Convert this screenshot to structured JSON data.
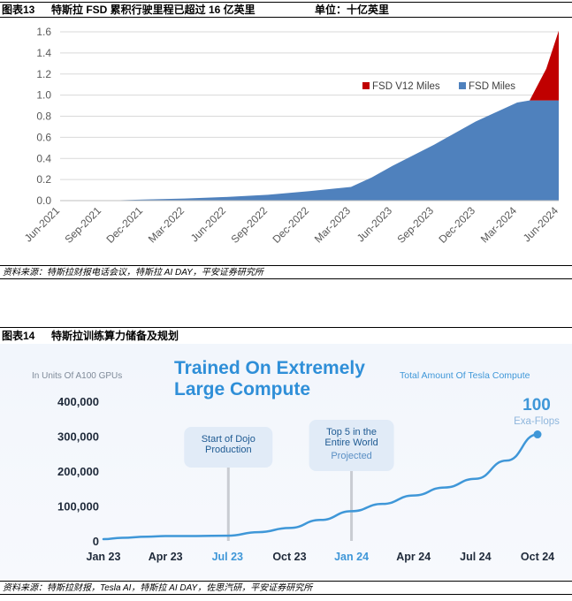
{
  "figure13": {
    "label": "图表13",
    "title": "特斯拉 FSD 累积行驶里程已超过 16 亿英里",
    "unit": "单位：十亿英里",
    "source": "资料来源：特斯拉财报电话会议，特斯拉 AI DAY，平安证券研究所"
  },
  "figure14": {
    "label": "图表14",
    "title": "特斯拉训练算力储备及规划",
    "source": "资料来源：特斯拉财报，Tesla AI，特斯拉 AI DAY，佐思汽研，平安证券研究所"
  },
  "chart_data": [
    {
      "type": "area",
      "stacked": true,
      "categories": [
        "Jun-2021",
        "Sep-2021",
        "Dec-2021",
        "Mar-2022",
        "Jun-2022",
        "Sep-2022",
        "Dec-2022",
        "Mar-2023",
        "Jun-2023",
        "Sep-2023",
        "Dec-2023",
        "Mar-2024",
        "Jun-2024"
      ],
      "x_positions": [
        0,
        1,
        2,
        3,
        4,
        5,
        6,
        7,
        8,
        9,
        10,
        11,
        12
      ],
      "series": [
        {
          "name": "FSD Miles",
          "color": "#4f81bd",
          "x": [
            0,
            1,
            2,
            3,
            4,
            5,
            6,
            7,
            7.5,
            8,
            9,
            10,
            10.5,
            11,
            11.3,
            12
          ],
          "y": [
            0,
            0,
            0.01,
            0.02,
            0.035,
            0.055,
            0.09,
            0.13,
            0.22,
            0.33,
            0.53,
            0.75,
            0.84,
            0.93,
            0.95,
            0.95
          ]
        },
        {
          "name": "FSD V12 Miles",
          "color": "#c00000",
          "x": [
            11.3,
            11.7,
            12
          ],
          "y": [
            0,
            0.3,
            0.66
          ]
        }
      ],
      "yticks": [
        "0.0",
        "0.2",
        "0.4",
        "0.6",
        "0.8",
        "1.0",
        "1.2",
        "1.4",
        "1.6"
      ],
      "ylim": [
        0,
        1.6
      ],
      "grid": true,
      "legend": "top-right"
    },
    {
      "type": "line",
      "title": "Trained On Extremely Large Compute",
      "subtitle": "Total Amount Of Tesla Compute",
      "ylabel": "In Units Of A100 GPUs",
      "categories": [
        "Jan 23",
        "Apr 23",
        "Jul 23",
        "Oct 23",
        "Jan 24",
        "Apr 24",
        "Jul 24",
        "Oct 24"
      ],
      "highlight_categories": [
        "Jul 23",
        "Jan 24"
      ],
      "yticks": [
        "400,000",
        "300,000",
        "200,000",
        "100,000",
        "0"
      ],
      "ylim": [
        0,
        400000
      ],
      "series": [
        {
          "color": "#3f97d8",
          "x": [
            0,
            0.3,
            0.7,
            1,
            1.5,
            2,
            2.5,
            3,
            3.5,
            4,
            4.5,
            5,
            5.5,
            6,
            6.5,
            7
          ],
          "y": [
            5000,
            9000,
            12000,
            14000,
            14000,
            15000,
            25000,
            37000,
            60000,
            85000,
            106000,
            130000,
            153000,
            178000,
            230000,
            305000
          ]
        }
      ],
      "annotations": [
        {
          "text_lines": [
            "Start of Dojo",
            "Production"
          ],
          "x": 2
        },
        {
          "text_lines": [
            "Top 5 in the",
            "Entire World"
          ],
          "sub": "Projected",
          "x": 4
        }
      ],
      "endpoint": {
        "value": "100",
        "unit": "Exa-Flops",
        "x": 7,
        "y": 305000
      }
    }
  ]
}
